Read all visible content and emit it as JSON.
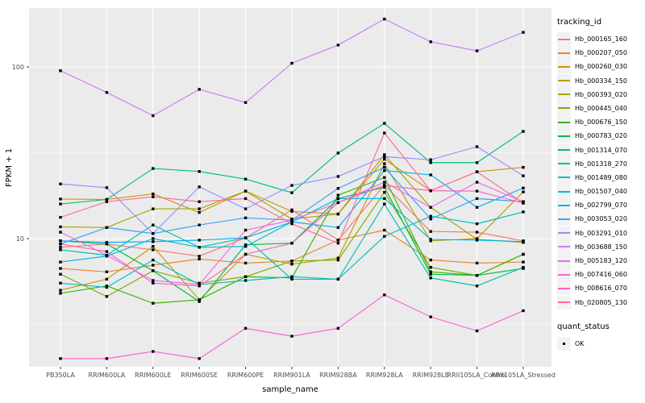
{
  "theme": {
    "panel_background": "#EBEBEB",
    "gridline_color": "#FFFFFF",
    "tick_text_color": "#4D4D4D",
    "axis_title_color": "#000000",
    "legend_key_background": "#F2F2F2",
    "point_color": "#000000"
  },
  "chart_data": {
    "type": "line",
    "title": "",
    "xlabel": "sample_name",
    "ylabel": "FPKM + 1",
    "y_scale": "log10",
    "ylim": [
      1.79,
      220
    ],
    "y_ticks": [
      10,
      100
    ],
    "y_minor_gridlines": [
      3.162,
      31.623
    ],
    "grid": "on",
    "legend_position": "right",
    "point_marker": {
      "shape": "square",
      "color": "#000000",
      "size": 3.4
    },
    "categories": [
      "PB350LA",
      "RRIM600LA",
      "RRIM600LE",
      "RRIM600SE",
      "RRIM600PE",
      "RRIM901LA",
      "RRIM928BA",
      "RRIM928LA",
      "RRIM928LE",
      "RRII105LA_Control",
      "RRII105LA_Stressed"
    ],
    "series": [
      {
        "name": "Hb_000165_160",
        "color": "#F8766D",
        "values": [
          8.9,
          9.3,
          8.6,
          7.9,
          10.1,
          14.7,
          9.8,
          20.5,
          11.0,
          10.9,
          9.7
        ]
      },
      {
        "name": "Hb_000207_050",
        "color": "#EA8331",
        "values": [
          6.7,
          6.4,
          7.0,
          7.6,
          7.2,
          7.4,
          9.8,
          11.2,
          7.5,
          7.2,
          7.3
        ]
      },
      {
        "name": "Hb_000260_030",
        "color": "#D89000",
        "values": [
          17.0,
          16.9,
          18.2,
          14.2,
          18.9,
          14.4,
          13.9,
          29.0,
          19.0,
          24.5,
          26.0
        ]
      },
      {
        "name": "Hb_000334_150",
        "color": "#C09B00",
        "values": [
          5.0,
          5.8,
          9.0,
          4.4,
          8.1,
          7.1,
          7.7,
          27.3,
          9.7,
          10.0,
          18.7
        ]
      },
      {
        "name": "Hb_000393_020",
        "color": "#A3A500",
        "values": [
          11.7,
          11.6,
          14.9,
          14.9,
          18.9,
          13.0,
          13.9,
          30.8,
          15.2,
          9.9,
          9.5
        ]
      },
      {
        "name": "Hb_000445_040",
        "color": "#7CAE00",
        "values": [
          6.2,
          4.6,
          6.5,
          5.5,
          6.0,
          7.4,
          7.5,
          18.6,
          6.8,
          6.1,
          8.1
        ]
      },
      {
        "name": "Hb_000676_150",
        "color": "#39B600",
        "values": [
          4.8,
          5.3,
          4.2,
          4.4,
          6.0,
          5.9,
          17.9,
          22.7,
          6.4,
          6.1,
          8.1
        ]
      },
      {
        "name": "Hb_000783_020",
        "color": "#00BB4E",
        "values": [
          9.7,
          9.3,
          6.5,
          4.3,
          9.2,
          9.4,
          17.1,
          19.9,
          6.2,
          6.1,
          6.7
        ]
      },
      {
        "name": "Hb_001314_070",
        "color": "#00BF7D",
        "values": [
          15.9,
          16.9,
          25.6,
          24.6,
          22.2,
          18.5,
          31.5,
          46.9,
          27.7,
          27.7,
          42.1
        ]
      },
      {
        "name": "Hb_001318_270",
        "color": "#00C1A3",
        "values": [
          8.6,
          8.0,
          12.0,
          8.9,
          10.1,
          5.8,
          5.8,
          15.9,
          5.9,
          5.3,
          6.8
        ]
      },
      {
        "name": "Hb_001489_080",
        "color": "#00BFC4",
        "values": [
          5.5,
          5.2,
          7.5,
          5.4,
          5.7,
          6.0,
          5.8,
          10.3,
          13.5,
          12.2,
          14.3
        ]
      },
      {
        "name": "Hb_001507_040",
        "color": "#00BAE0",
        "values": [
          7.3,
          7.9,
          10.0,
          8.9,
          9.0,
          12.5,
          17.1,
          17.1,
          9.9,
          9.8,
          9.6
        ]
      },
      {
        "name": "Hb_002799_070",
        "color": "#00B0F6",
        "values": [
          9.7,
          9.5,
          9.6,
          9.8,
          10.1,
          12.5,
          11.6,
          24.9,
          23.5,
          15.2,
          19.7
        ]
      },
      {
        "name": "Hb_003053_020",
        "color": "#35A2FF",
        "values": [
          9.3,
          11.6,
          10.7,
          12.0,
          13.2,
          12.8,
          19.6,
          26.0,
          13.0,
          17.1,
          16.4
        ]
      },
      {
        "name": "Hb_003291_010",
        "color": "#9590FF",
        "values": [
          20.8,
          19.8,
          10.7,
          20.0,
          14.9,
          20.4,
          23.0,
          30.0,
          28.8,
          34.3,
          23.2
        ]
      },
      {
        "name": "Hb_003688_150",
        "color": "#C77CFF",
        "values": [
          95.0,
          71.0,
          52.0,
          74.0,
          62.0,
          105.0,
          134.0,
          190.0,
          140.0,
          124.0,
          159.0
        ]
      },
      {
        "name": "Hb_005183_120",
        "color": "#E76BF3",
        "values": [
          10.9,
          8.0,
          5.7,
          5.4,
          11.2,
          12.8,
          16.2,
          21.3,
          15.2,
          21.3,
          16.4
        ]
      },
      {
        "name": "Hb_007416_060",
        "color": "#FA62DB",
        "values": [
          2.0,
          2.0,
          2.2,
          2.0,
          3.0,
          2.7,
          3.0,
          4.7,
          3.5,
          2.9,
          3.8
        ]
      },
      {
        "name": "Hb_008616_070",
        "color": "#FF62BC",
        "values": [
          9.3,
          8.4,
          5.5,
          5.3,
          8.1,
          9.4,
          16.2,
          20.4,
          19.0,
          18.9,
          16.1
        ]
      },
      {
        "name": "Hb_020805_130",
        "color": "#FF6A98",
        "values": [
          13.3,
          16.4,
          17.5,
          16.4,
          17.1,
          12.2,
          9.4,
          41.2,
          19.0,
          24.5,
          16.1
        ]
      }
    ],
    "legend": {
      "tracking_title": "tracking_id",
      "quant_title": "quant_status",
      "quant_items": [
        {
          "label": "OK"
        }
      ]
    }
  }
}
